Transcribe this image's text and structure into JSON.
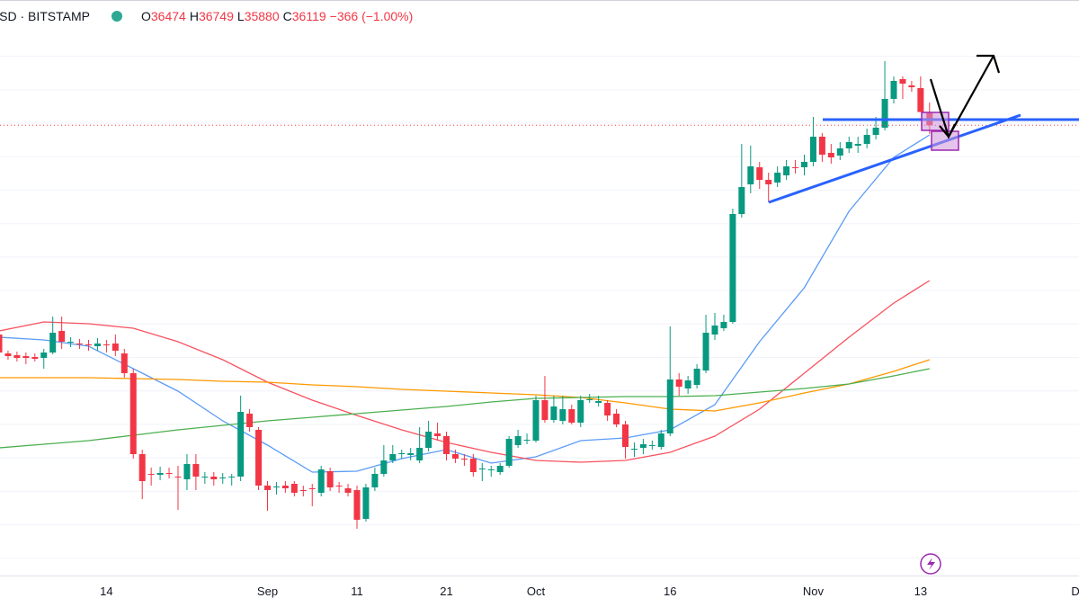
{
  "header": {
    "symbol": "BTCUSD · BITSTAMP",
    "ohlc": [
      {
        "label": "O",
        "value": "36474"
      },
      {
        "label": "H",
        "value": "36749"
      },
      {
        "label": "L",
        "value": "35880"
      },
      {
        "label": "C",
        "value": "36119"
      }
    ],
    "change": "−366 (−1.00%)"
  },
  "chart_data": {
    "type": "candlestick",
    "up_color": "#089981",
    "down_color": "#f23645",
    "ylim": [
      23600,
      39600
    ],
    "categories": [
      null,
      null,
      null,
      null,
      null,
      null,
      null,
      null,
      null,
      null,
      null,
      null,
      "14",
      null,
      null,
      null,
      null,
      null,
      null,
      null,
      null,
      null,
      null,
      null,
      null,
      null,
      null,
      null,
      null,
      null,
      "Sep",
      null,
      null,
      null,
      null,
      null,
      null,
      null,
      null,
      null,
      "11",
      null,
      null,
      null,
      null,
      null,
      null,
      null,
      null,
      null,
      "21",
      null,
      null,
      null,
      null,
      null,
      null,
      null,
      null,
      null,
      "Oct",
      null,
      null,
      null,
      null,
      null,
      null,
      null,
      null,
      null,
      null,
      null,
      null,
      null,
      null,
      "16",
      null,
      null,
      null,
      null,
      null,
      null,
      null,
      null,
      null,
      null,
      null,
      null,
      null,
      null,
      null,
      "Nov",
      null,
      null,
      null,
      null,
      null,
      null,
      null,
      null,
      null,
      null,
      null,
      "13",
      null,
      null,
      null,
      null,
      null,
      null,
      null,
      null,
      null,
      null,
      null,
      null,
      null,
      null,
      null,
      null,
      null,
      "Dec"
    ],
    "open": [
      30300,
      29775,
      29725,
      29700,
      29675,
      29650,
      29800,
      30400,
      30075,
      30050,
      30025,
      29975,
      30025,
      30050,
      29775,
      29225,
      26975,
      26425,
      26400,
      26450,
      26350,
      26275,
      26700,
      26325,
      26350,
      26300,
      26325,
      26350,
      28100,
      27650,
      26100,
      26050,
      26100,
      26150,
      25975,
      26025,
      25900,
      26500,
      26100,
      26025,
      25975,
      25175,
      26050,
      26425,
      26800,
      26975,
      26950,
      26800,
      27150,
      27550,
      27475,
      26975,
      26850,
      26850,
      26550,
      26525,
      26475,
      26650,
      27225,
      27350,
      27350,
      28475,
      27925,
      27900,
      28225,
      27850,
      28475,
      28400,
      28400,
      28100,
      27800,
      27100,
      27150,
      27200,
      27175,
      27550,
      29050,
      28800,
      28900,
      29300,
      30300,
      30475,
      30650,
      33650,
      34475,
      34950,
      34600,
      34525,
      34725,
      34950,
      34950,
      35100,
      35800,
      35350,
      35275,
      35475,
      35550,
      35600,
      35850,
      36050,
      36850,
      37400,
      37225,
      37150,
      36474,
      null,
      null,
      null,
      null,
      null,
      null,
      null,
      null,
      null,
      null,
      null,
      null,
      null,
      null,
      null,
      null,
      null
    ],
    "high": [
      30400,
      29850,
      29825,
      29800,
      29775,
      29900,
      30800,
      30800,
      30225,
      30175,
      30150,
      30200,
      30150,
      30300,
      29900,
      29350,
      27100,
      26600,
      26625,
      26600,
      26650,
      26975,
      26975,
      26475,
      26475,
      26450,
      26425,
      28600,
      28225,
      27725,
      26225,
      26200,
      26225,
      26225,
      26100,
      26150,
      26650,
      26600,
      26200,
      26150,
      26100,
      26150,
      26600,
      27225,
      27225,
      27100,
      27150,
      27725,
      27900,
      27850,
      27600,
      27100,
      26975,
      26975,
      26725,
      26650,
      26725,
      27475,
      27650,
      27550,
      28600,
      29150,
      28600,
      28600,
      28350,
      28600,
      28650,
      28600,
      28475,
      28225,
      27900,
      27300,
      27400,
      27350,
      27650,
      30525,
      29225,
      29150,
      29475,
      30850,
      30900,
      30850,
      33800,
      35600,
      35550,
      35100,
      34800,
      34975,
      35150,
      35150,
      35300,
      36350,
      35900,
      35600,
      35650,
      35800,
      35800,
      36025,
      36350,
      37900,
      37475,
      37475,
      37350,
      37475,
      36749,
      null,
      null,
      null,
      null,
      null,
      null,
      null,
      null,
      null,
      null,
      null,
      null,
      null,
      null,
      null,
      null,
      null
    ],
    "low": [
      29700,
      29600,
      29550,
      29475,
      29550,
      29350,
      29750,
      29900,
      29950,
      29900,
      29850,
      29850,
      29800,
      29700,
      29100,
      26850,
      25725,
      26100,
      26250,
      26300,
      25425,
      25975,
      25975,
      26150,
      26100,
      26150,
      26100,
      26225,
      27600,
      25975,
      25400,
      25850,
      25900,
      25800,
      25800,
      25525,
      25800,
      25950,
      25900,
      25800,
      24900,
      25100,
      25950,
      26350,
      26725,
      26850,
      26800,
      26725,
      27050,
      27350,
      26800,
      26725,
      26650,
      26350,
      26225,
      26350,
      26400,
      26600,
      27150,
      27250,
      27300,
      27850,
      27850,
      27800,
      27800,
      27725,
      28400,
      28300,
      27900,
      27725,
      26850,
      26900,
      26975,
      27100,
      27100,
      27475,
      28600,
      28650,
      28800,
      29225,
      30150,
      30400,
      30600,
      33550,
      34225,
      34350,
      33975,
      34400,
      34600,
      34775,
      34725,
      34975,
      35100,
      35050,
      35150,
      35350,
      35350,
      35475,
      35725,
      35975,
      36725,
      36850,
      37050,
      36600,
      35880,
      null,
      null,
      null,
      null,
      null,
      null,
      null,
      null,
      null,
      null,
      null,
      null,
      null,
      null,
      null,
      null,
      null
    ],
    "close": [
      29800,
      29700,
      29650,
      29650,
      29625,
      29800,
      30350,
      30100,
      30100,
      30025,
      30000,
      30050,
      30000,
      29850,
      29225,
      26975,
      26225,
      26400,
      26450,
      26425,
      26325,
      26700,
      26350,
      26350,
      26275,
      26325,
      26350,
      28150,
      27725,
      26100,
      25975,
      26075,
      26025,
      25900,
      25950,
      26000,
      26550,
      26050,
      26075,
      25900,
      25150,
      26050,
      26425,
      26800,
      26975,
      27000,
      27000,
      27150,
      27600,
      27475,
      26975,
      26850,
      26825,
      26475,
      26575,
      26550,
      26650,
      27400,
      27475,
      27375,
      28475,
      27925,
      28300,
      28225,
      27850,
      28475,
      28500,
      28450,
      28050,
      27800,
      27175,
      27125,
      27250,
      27225,
      27550,
      29050,
      28850,
      29025,
      29350,
      30350,
      30550,
      30650,
      33650,
      34400,
      34975,
      34600,
      34475,
      34800,
      34975,
      34925,
      35100,
      35800,
      35300,
      35225,
      35475,
      35650,
      35600,
      35850,
      36050,
      36850,
      37350,
      37275,
      37175,
      36485,
      36119,
      null,
      null,
      null,
      null,
      null,
      null,
      null,
      null,
      null,
      null,
      null,
      null,
      null,
      null,
      null,
      null,
      null
    ],
    "overlays": [
      {
        "color": "#5b9cf6",
        "x": [
          0,
          5,
          10,
          15,
          20,
          25,
          30,
          35,
          40,
          45,
          50,
          55,
          60,
          65,
          70,
          75,
          80,
          85,
          90,
          95,
          100,
          104
        ],
        "values": [
          30225,
          30150,
          29975,
          29350,
          28725,
          27900,
          27225,
          26475,
          26500,
          26850,
          27100,
          26725,
          26900,
          27350,
          27425,
          27650,
          28350,
          30100,
          31600,
          33725,
          35225,
          35850
        ]
      },
      {
        "color": "#f7525f",
        "x": [
          0,
          5,
          10,
          15,
          20,
          25,
          30,
          35,
          40,
          45,
          50,
          55,
          60,
          65,
          70,
          75,
          80,
          85,
          90,
          95,
          100,
          104
        ],
        "values": [
          30400,
          30650,
          30600,
          30475,
          30100,
          29600,
          28975,
          28475,
          28050,
          27650,
          27300,
          27025,
          26800,
          26750,
          26800,
          27025,
          27475,
          28225,
          29225,
          30225,
          31175,
          31800
        ]
      },
      {
        "color": "#ff9800",
        "x": [
          0,
          5,
          10,
          15,
          20,
          25,
          30,
          35,
          40,
          45,
          50,
          55,
          60,
          65,
          70,
          75,
          80,
          85,
          90,
          95,
          100,
          104
        ],
        "values": [
          29100,
          29100,
          29100,
          29075,
          29050,
          29000,
          28975,
          28900,
          28850,
          28775,
          28725,
          28675,
          28625,
          28550,
          28400,
          28225,
          28175,
          28400,
          28675,
          28925,
          29275,
          29600
        ]
      },
      {
        "color": "#4caf50",
        "x": [
          0,
          5,
          10,
          15,
          20,
          25,
          30,
          35,
          40,
          45,
          50,
          55,
          60,
          65,
          70,
          75,
          80,
          85,
          90,
          95,
          100,
          104
        ],
        "values": [
          27150,
          27250,
          27350,
          27500,
          27650,
          27775,
          27900,
          28000,
          28100,
          28200,
          28300,
          28425,
          28525,
          28550,
          28575,
          28575,
          28600,
          28700,
          28800,
          28925,
          29150,
          29350
        ]
      }
    ]
  }
}
